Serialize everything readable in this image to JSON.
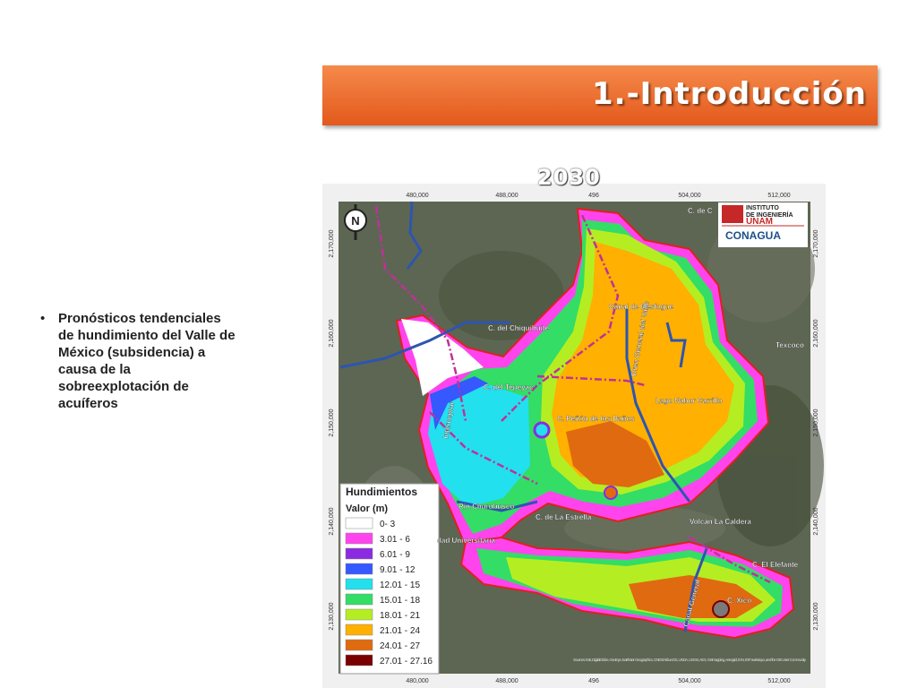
{
  "header": {
    "title": "1.-Introducción"
  },
  "subtitle": "2030",
  "bullets": [
    "Pronósticos tendenciales de hundimiento del Valle de México (subsidencia) a causa de la sobreexplotación de acuíferos"
  ],
  "map": {
    "x_coords": [
      "480,000",
      "488,000",
      "496",
      "504,000",
      "512,000"
    ],
    "y_coords": [
      "2,170,000",
      "2,160,000",
      "2,150,000",
      "2,140,000",
      "2,130,000"
    ],
    "places": [
      "C. de C",
      "C. del Chiquihuite",
      "C. del Tepeyac",
      "C. Peñón de los Baños",
      "Canal de Desfogue",
      "Dren General del Valle",
      "Lago Nabor Carrillo",
      "Texcoco",
      "C. de La Estrella",
      "Volcán La Caldera",
      "C. El Elefante",
      "C. Xico",
      "Río Churubusco",
      "dad Universitaria",
      "Canal General",
      "Interceptor"
    ],
    "logos": [
      "INSTITUTO",
      "DE INGENIERÍA",
      "UNAM",
      "CONAGUA"
    ],
    "legend": {
      "title": "Hundimientos",
      "subtitle": "Valor (m)",
      "items": [
        {
          "label": "0- 3",
          "color": "#ffffff"
        },
        {
          "label": "3.01 - 6",
          "color": "#ff44ee"
        },
        {
          "label": "6.01 - 9",
          "color": "#8a2be2"
        },
        {
          "label": "9.01 - 12",
          "color": "#3558ff"
        },
        {
          "label": "12.01 - 15",
          "color": "#22e0ee"
        },
        {
          "label": "15.01 - 18",
          "color": "#33dd66"
        },
        {
          "label": "18.01 - 21",
          "color": "#b4ee22"
        },
        {
          "label": "21.01 - 24",
          "color": "#ffb000"
        },
        {
          "label": "24.01 - 27",
          "color": "#e06a10"
        },
        {
          "label": "27.01 - 27.16",
          "color": "#7a0000"
        }
      ]
    },
    "credits": "Sources: Esri, DigitalGlobe, GeoEye, Earthstar Geographics, CNES/Airbus DS, USDA, USGS, AEX, Getmapping, Aerogrid, IGN, IGP, swisstopo, and the GIS User Community"
  }
}
